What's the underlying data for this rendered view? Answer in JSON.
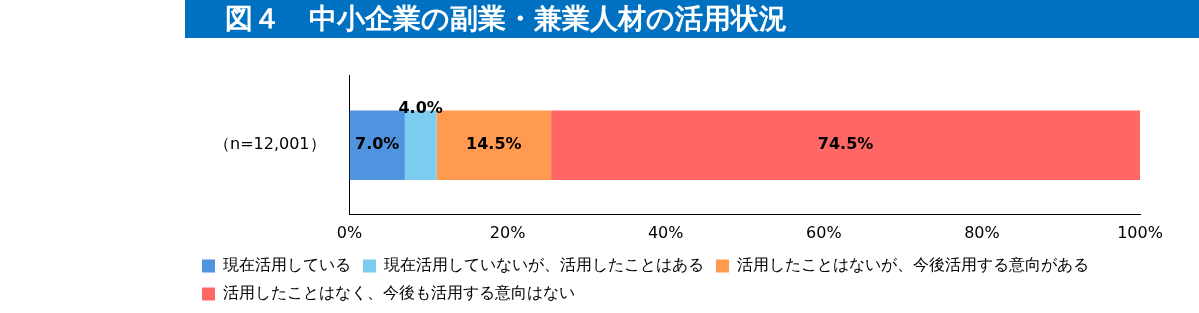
{
  "chart_data": {
    "type": "bar",
    "title": "図４　中小企業の副業・兼業人材の活用状況",
    "orientation": "horizontal",
    "stacked": true,
    "categories": [
      "（n=12,001）"
    ],
    "series": [
      {
        "name": "現在活用している",
        "color": "#5094e0",
        "values": [
          7.0
        ],
        "value_labels": [
          "7.0%"
        ]
      },
      {
        "name": "現在活用していないが、活用したことはある",
        "color": "#7ccdf0",
        "values": [
          4.0
        ],
        "value_labels": [
          "4.0%"
        ]
      },
      {
        "name": "活用したことはないが、今後活用する意向がある",
        "color": "#ff9a50",
        "values": [
          14.5
        ],
        "value_labels": [
          "14.5%"
        ]
      },
      {
        "name": "活用したことはなく、今後も活用する意向はない",
        "color": "#ff6666",
        "values": [
          74.5
        ],
        "value_labels": [
          "74.5%"
        ]
      }
    ],
    "xlim": [
      0,
      100
    ],
    "xticks": [
      {
        "value": 0,
        "label": "0%"
      },
      {
        "value": 20,
        "label": "20%"
      },
      {
        "value": 40,
        "label": "40%"
      },
      {
        "value": 60,
        "label": "60%"
      },
      {
        "value": 80,
        "label": "80%"
      },
      {
        "value": 100,
        "label": "100%"
      }
    ],
    "grid": false,
    "legend": "bottom"
  }
}
